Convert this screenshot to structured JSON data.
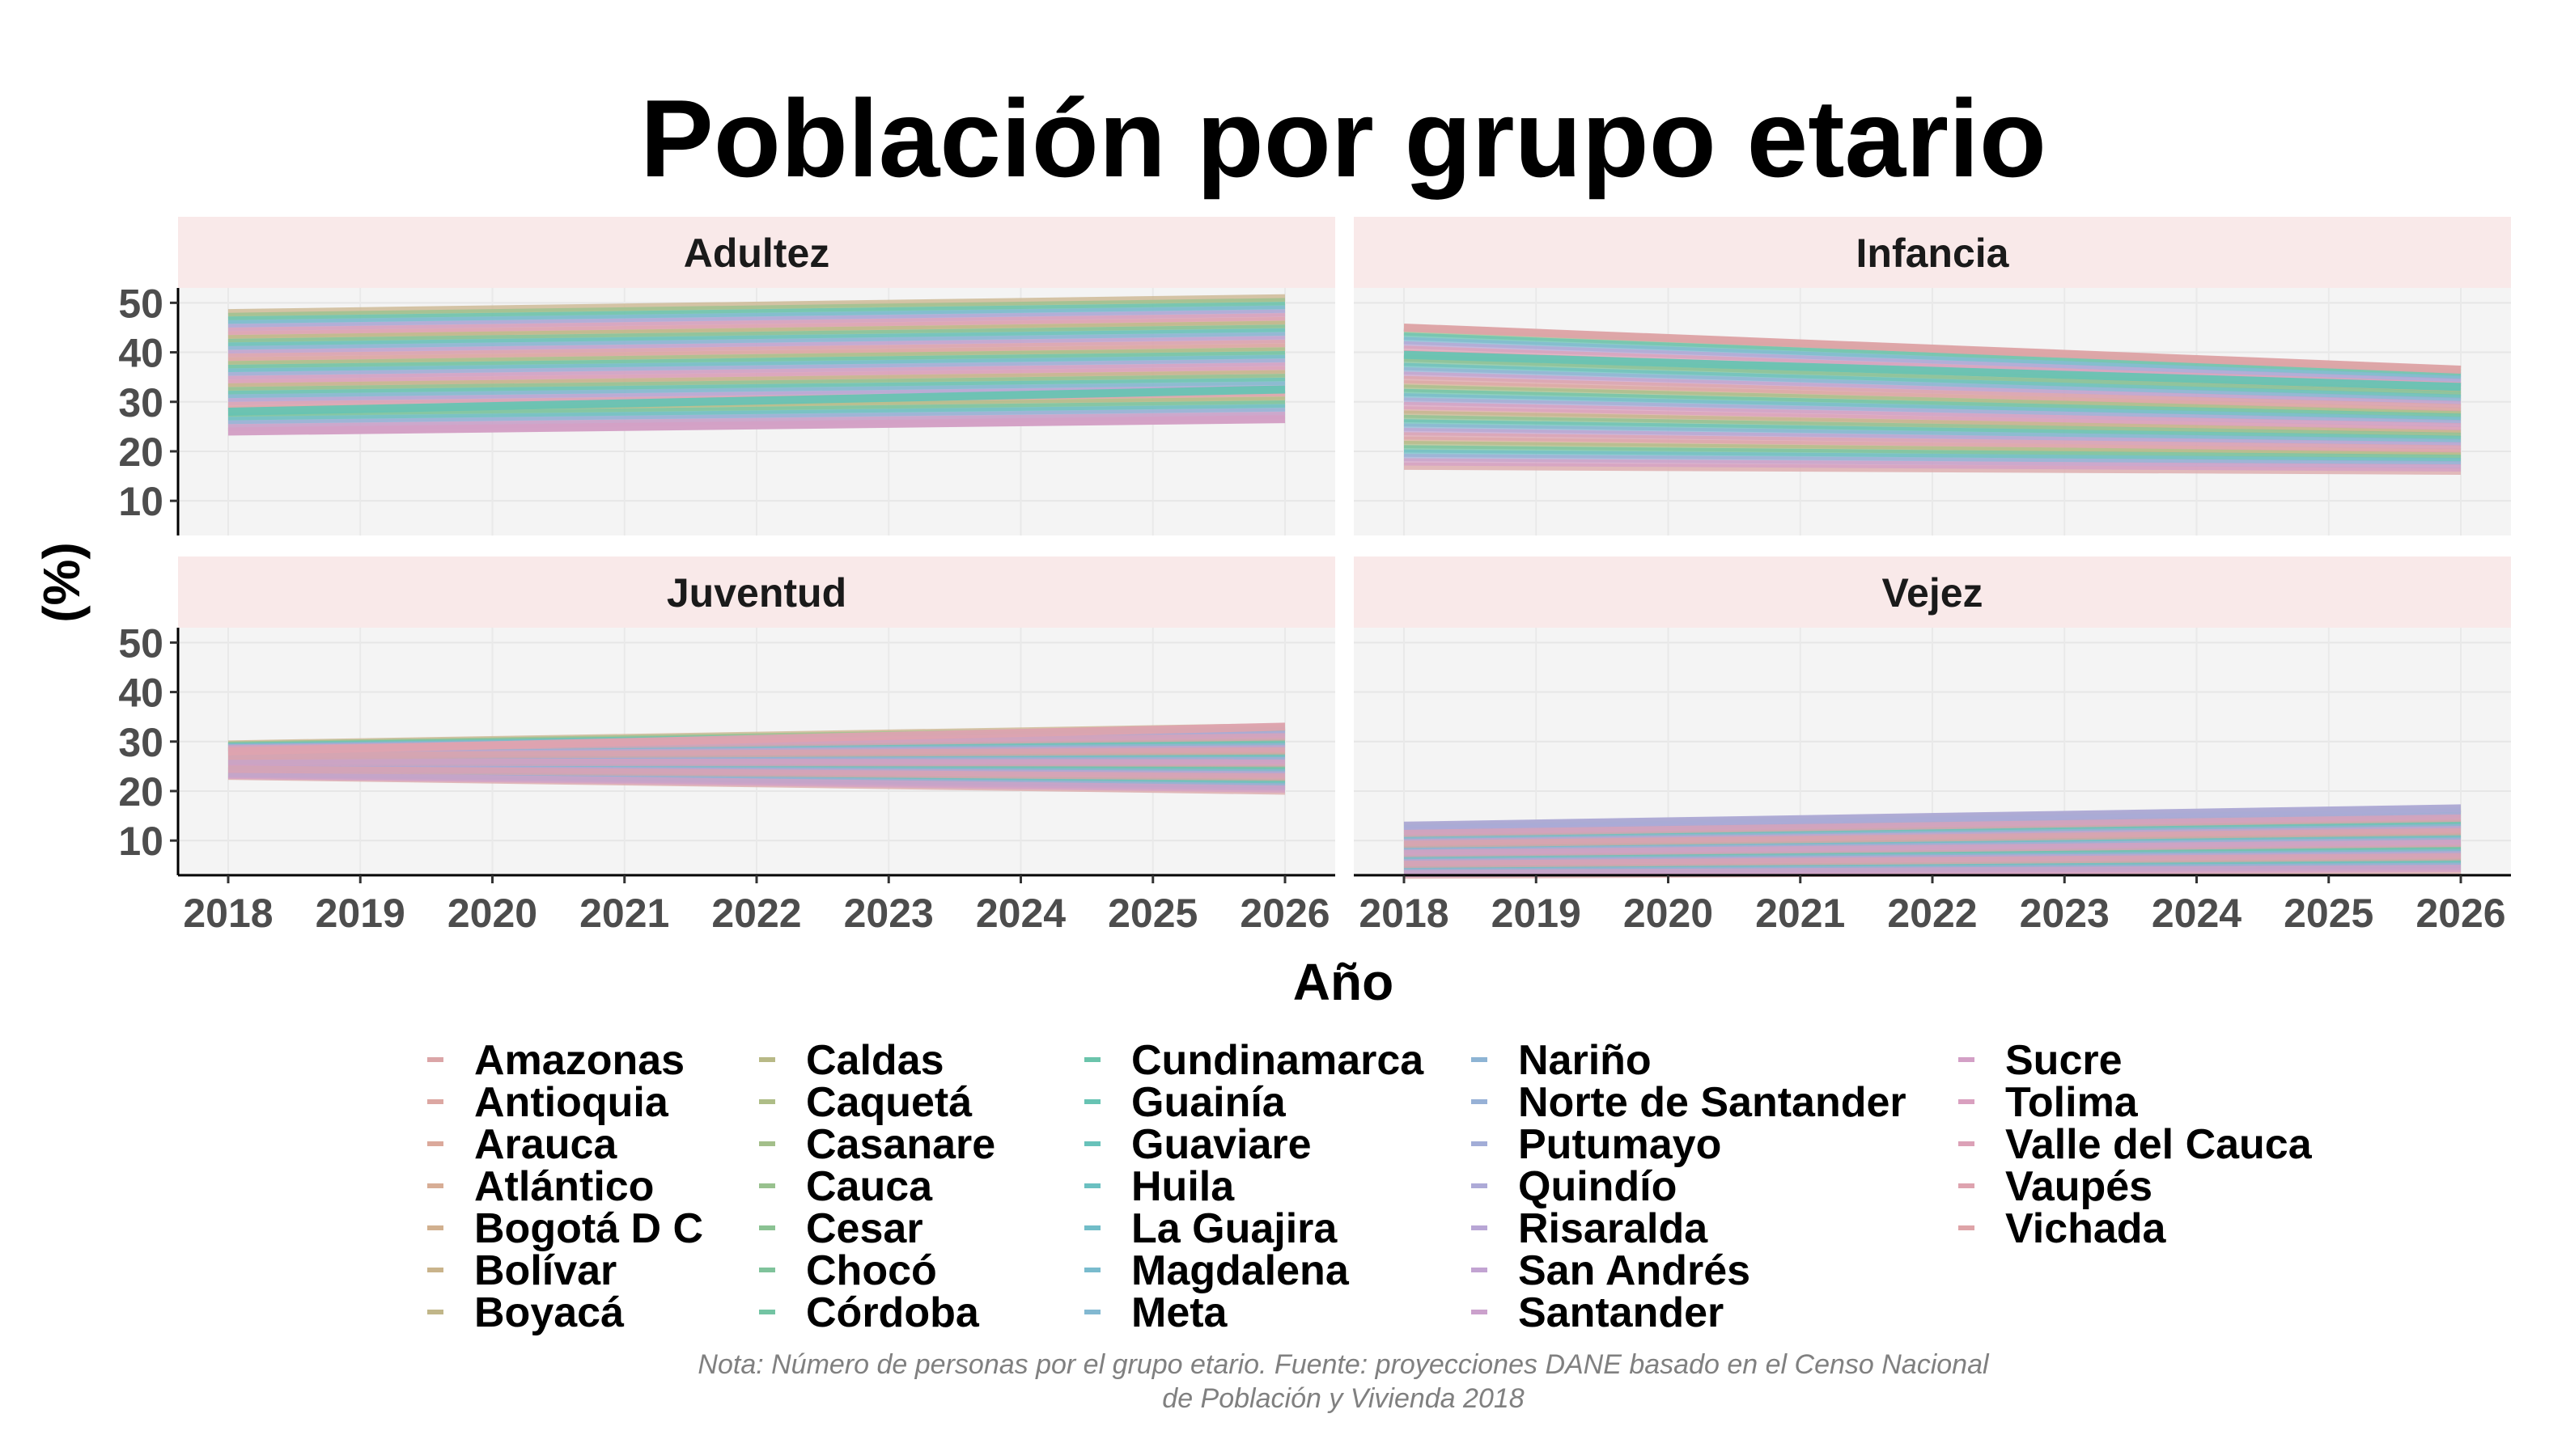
{
  "chart_data": {
    "type": "line",
    "title": "Población por grupo etario",
    "xlabel": "Año",
    "ylabel": "(%)",
    "x": [
      2018,
      2019,
      2020,
      2021,
      2022,
      2023,
      2024,
      2025,
      2026
    ],
    "x_ticks": [
      "2018",
      "2019",
      "2020",
      "2021",
      "2022",
      "2023",
      "2024",
      "2025",
      "2026"
    ],
    "y_ticks": [
      "10",
      "20",
      "30",
      "40",
      "50"
    ],
    "ylim": [
      3,
      53
    ],
    "grid": true,
    "legend_position": "bottom",
    "panels": [
      {
        "name": "Adultez",
        "start_range": [
          24,
          48
        ],
        "end_range": [
          26.5,
          51
        ],
        "highlight": [
          {
            "series": "Sucre",
            "values": [
              24,
              26.5
            ]
          },
          {
            "series": "Guainía",
            "values": [
              28,
              32.5
            ]
          }
        ]
      },
      {
        "name": "Infancia",
        "start_range": [
          17,
          45
        ],
        "end_range": [
          16,
          36.5
        ],
        "highlight": [
          {
            "series": "Vichada",
            "values": [
              45,
              36.5
            ]
          },
          {
            "series": "Guainía",
            "values": [
              39.5,
              33
            ]
          }
        ]
      },
      {
        "name": "Juventud",
        "start_range": [
          23,
          29.5
        ],
        "end_range": [
          20,
          33
        ],
        "highlight": [
          {
            "series": "Vaupés",
            "values": [
              28,
              33
            ]
          }
        ]
      },
      {
        "name": "Vejez",
        "start_range": [
          3,
          13
        ],
        "end_range": [
          4,
          16.5
        ],
        "highlight": [
          {
            "series": "Quindío",
            "values": [
              13,
              16.5
            ]
          }
        ]
      }
    ],
    "series_names": [
      "Amazonas",
      "Antioquia",
      "Arauca",
      "Atlántico",
      "Bogotá D C",
      "Bolívar",
      "Boyacá",
      "Caldas",
      "Caquetá",
      "Casanare",
      "Cauca",
      "Cesar",
      "Chocó",
      "Córdoba",
      "Cundinamarca",
      "Guainía",
      "Guaviare",
      "Huila",
      "La Guajira",
      "Magdalena",
      "Meta",
      "Nariño",
      "Norte de Santander",
      "Putumayo",
      "Quindío",
      "Risaralda",
      "San Andrés",
      "Santander",
      "Sucre",
      "Tolima",
      "Valle del Cauca",
      "Vaupés",
      "Vichada"
    ],
    "series_colors": [
      "#dba5a7",
      "#dca7a2",
      "#dba99b",
      "#d7ad95",
      "#d1b08f",
      "#c9b38b",
      "#c1b689",
      "#b8b986",
      "#aebd87",
      "#a3bf8a",
      "#98c18e",
      "#8bc293",
      "#7fc39b",
      "#73c4a3",
      "#6bc4ab",
      "#67c3b3",
      "#68c2ba",
      "#6bc0c1",
      "#71bdc8",
      "#79bbcd",
      "#82b8d1",
      "#8db4d4",
      "#97b1d6",
      "#a2add7",
      "#adaad7",
      "#b8a6d5",
      "#c2a3d2",
      "#cba1cc",
      "#d3a0c6",
      "#d9a0bf",
      "#dca1b7",
      "#dea3af",
      "#dea4a8"
    ],
    "caption": [
      "Nota: Número de personas por el grupo etario. Fuente: proyecciones DANE basado en el Censo Nacional",
      "de Población y Vivienda 2018"
    ]
  }
}
